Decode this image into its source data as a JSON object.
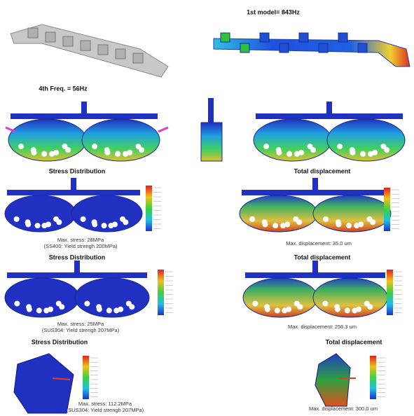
{
  "top": {
    "label": "1st model= 843Hz"
  },
  "mode": {
    "label": "4th Freq. = 56Hz"
  },
  "results": [
    {
      "stress_title": "Stress Distribution",
      "displacement_title": "Total displacement",
      "stress_caption": [
        "Max. stress: 28MPa",
        "(SS400: Yield strengh 200MPa)"
      ],
      "displacement_caption": "Max. displacement: 35.0 um"
    },
    {
      "stress_title": "Stress Distribution",
      "displacement_title": "Total displacement",
      "stress_caption": [
        "Max. stress: 25MPa",
        "(SUS304: Yield strengh 207MPa)"
      ],
      "displacement_caption": "Max. displacement: 256.3 um"
    },
    {
      "stress_title": "Stress Distribution",
      "displacement_title": "Total displacement",
      "stress_caption": [
        "Max. stress: 112.2MPa",
        "(SUS304: Yield strengh 207MPa)"
      ],
      "displacement_caption": "Max. displacement: 300.0 um"
    }
  ]
}
